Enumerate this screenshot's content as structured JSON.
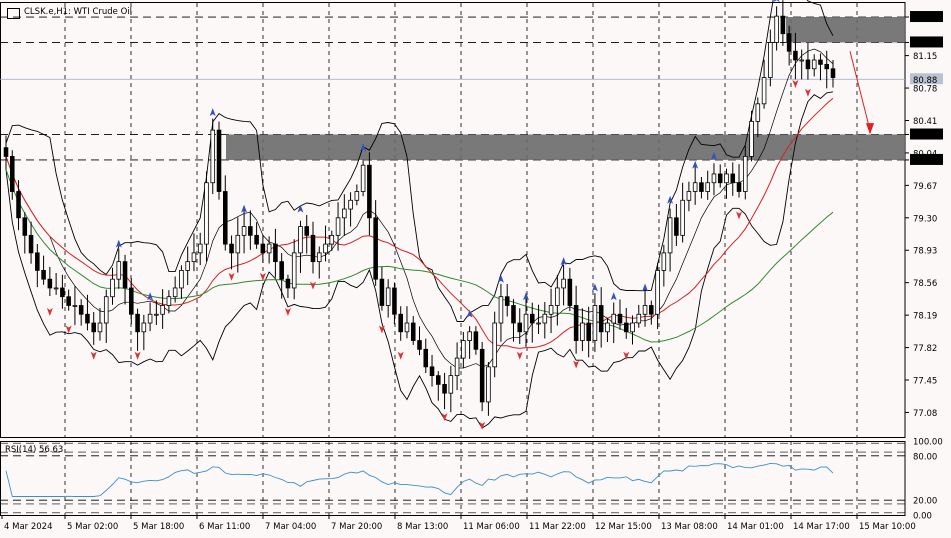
{
  "header": {
    "title": "CLSK.e,H1: WTI Crude Oil",
    "rsi_label": "RSI(14) 56.63"
  },
  "chart_data": {
    "type": "candlestick",
    "title": "CLSK.e,H1: WTI Crude Oil",
    "symbol": "CLSK.e",
    "timeframe": "H1",
    "instrument": "WTI Crude Oil",
    "ylim": [
      76.8,
      81.75
    ],
    "grid": true,
    "yticks": [
      "81.59",
      "81.30",
      "81.15",
      "80.78",
      "80.41",
      "80.25",
      "80.04",
      "79.96",
      "79.67",
      "79.30",
      "78.93",
      "78.56",
      "78.19",
      "77.82",
      "77.45",
      "77.08"
    ],
    "xticks": [
      "4 Mar 2024",
      "5 Mar 02:00",
      "5 Mar 18:00",
      "6 Mar 11:00",
      "7 Mar 04:00",
      "7 Mar 20:00",
      "8 Mar 13:00",
      "11 Mar 06:00",
      "11 Mar 22:00",
      "12 Mar 15:00",
      "13 Mar 08:00",
      "14 Mar 01:00",
      "14 Mar 17:00",
      "15 Mar 10:00"
    ],
    "current_price": "80.88",
    "highlighted_levels": [
      "81.59",
      "81.30",
      "80.25",
      "79.96"
    ],
    "zones": [
      {
        "from": 81.3,
        "to": 81.59,
        "start_tick": "14 Mar 17:00"
      },
      {
        "from": 79.96,
        "to": 80.25,
        "start_tick": "6 Mar 11:00"
      }
    ],
    "close": [
      80.0,
      79.6,
      79.3,
      79.1,
      78.9,
      78.7,
      78.6,
      78.5,
      78.5,
      78.4,
      78.3,
      78.3,
      78.2,
      78.1,
      78.0,
      78.1,
      78.4,
      78.6,
      78.8,
      78.5,
      78.2,
      78.0,
      78.1,
      78.2,
      78.2,
      78.3,
      78.4,
      78.5,
      78.7,
      78.8,
      78.9,
      79.0,
      79.7,
      80.3,
      79.6,
      79.0,
      78.9,
      79.1,
      79.2,
      79.1,
      79.0,
      78.9,
      79.0,
      78.8,
      78.6,
      78.5,
      78.9,
      79.2,
      79.1,
      78.8,
      78.9,
      79.0,
      79.1,
      79.3,
      79.4,
      79.5,
      79.6,
      79.9,
      79.3,
      78.6,
      78.3,
      78.5,
      78.2,
      78.0,
      78.1,
      77.9,
      77.8,
      77.6,
      77.5,
      77.4,
      77.3,
      77.5,
      77.7,
      77.9,
      78.0,
      77.8,
      77.2,
      77.6,
      78.1,
      78.4,
      78.3,
      78.1,
      78.0,
      78.2,
      78.1,
      78.1,
      78.2,
      78.3,
      78.5,
      78.6,
      78.3,
      77.9,
      78.1,
      77.9,
      78.3,
      78.0,
      78.1,
      78.2,
      78.1,
      78.0,
      78.1,
      78.2,
      78.3,
      78.2,
      78.7,
      78.9,
      79.3,
      79.1,
      79.5,
      79.6,
      79.7,
      79.6,
      79.7,
      79.8,
      79.7,
      79.8,
      79.7,
      79.6,
      80.0,
      80.4,
      80.6,
      80.9,
      81.3,
      81.6,
      81.4,
      81.2,
      81.1,
      81.1,
      81.0,
      81.1,
      81.05,
      81.0,
      80.9
    ],
    "volatility": {
      "name": "Bollinger Bands"
    },
    "ma": [
      {
        "name": "MA fast",
        "color": "#d62020"
      },
      {
        "name": "MA slow",
        "color": "#2f8a2f"
      }
    ],
    "signals": {
      "up_color": "#3050c8",
      "down_color": "#e03030"
    },
    "rsi": {
      "name": "RSI(14)",
      "value": 56.63,
      "levels": [
        80,
        20
      ],
      "ylim": [
        0,
        100
      ],
      "yticks": [
        "100.00",
        "80.00",
        "20.00",
        "0.00"
      ]
    }
  }
}
